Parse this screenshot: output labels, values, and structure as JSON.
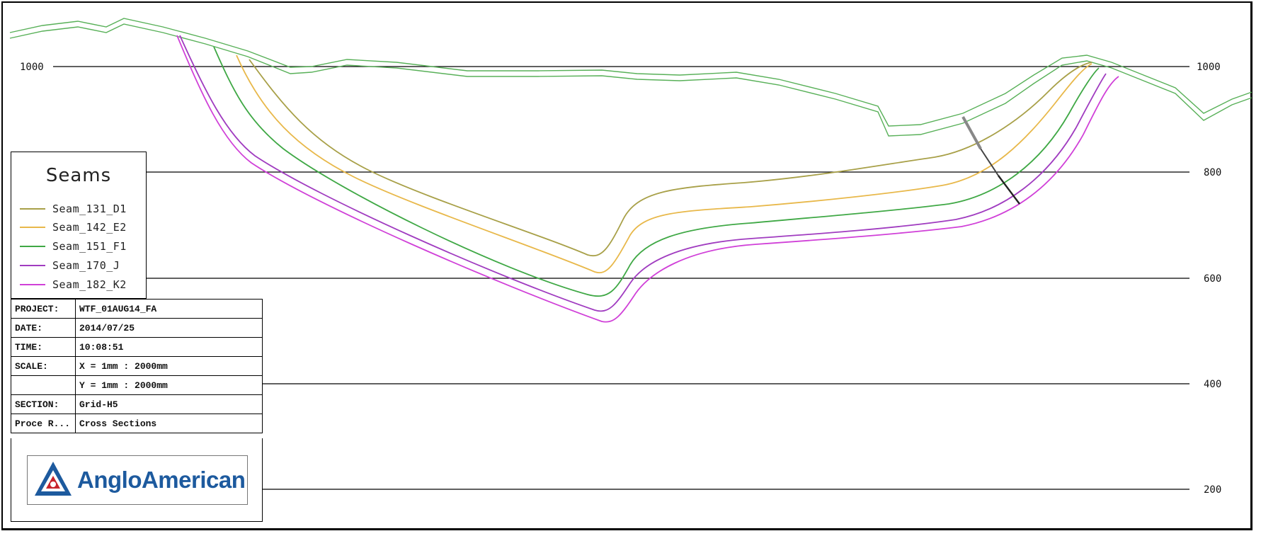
{
  "axis": {
    "y_ticks_left": [
      "1000"
    ],
    "y_ticks_right": [
      "1000",
      "800",
      "600",
      "400",
      "200"
    ],
    "y_tick_values": [
      1000,
      800,
      600,
      400,
      200
    ]
  },
  "legend": {
    "title": "Seams",
    "items": [
      {
        "label": "Seam_131_D1",
        "color": "#a8a048"
      },
      {
        "label": "Seam_142_E2",
        "color": "#e8b84a"
      },
      {
        "label": "Seam_151_F1",
        "color": "#3fa845"
      },
      {
        "label": "Seam_170_J",
        "color": "#a03cc0"
      },
      {
        "label": "Seam_182_K2",
        "color": "#d040d8"
      }
    ]
  },
  "info": {
    "project_label": "PROJECT:",
    "project_value": "WTF_01AUG14_FA",
    "date_label": "DATE:",
    "date_value": "2014/07/25",
    "time_label": "TIME:",
    "time_value": "10:08:51",
    "scale_label": "SCALE:",
    "scale_x": "X = 1mm : 2000mm",
    "scale_y": "Y = 1mm : 2000mm",
    "section_label": "SECTION:",
    "section_value": "Grid-H5",
    "proc_label": "Proce R...",
    "proc_value": "Cross Sections"
  },
  "logo": {
    "text": "AngloAmerican",
    "color": "#1d5a9e"
  },
  "colors": {
    "topography": "#58b058",
    "grid": "#000000"
  }
}
